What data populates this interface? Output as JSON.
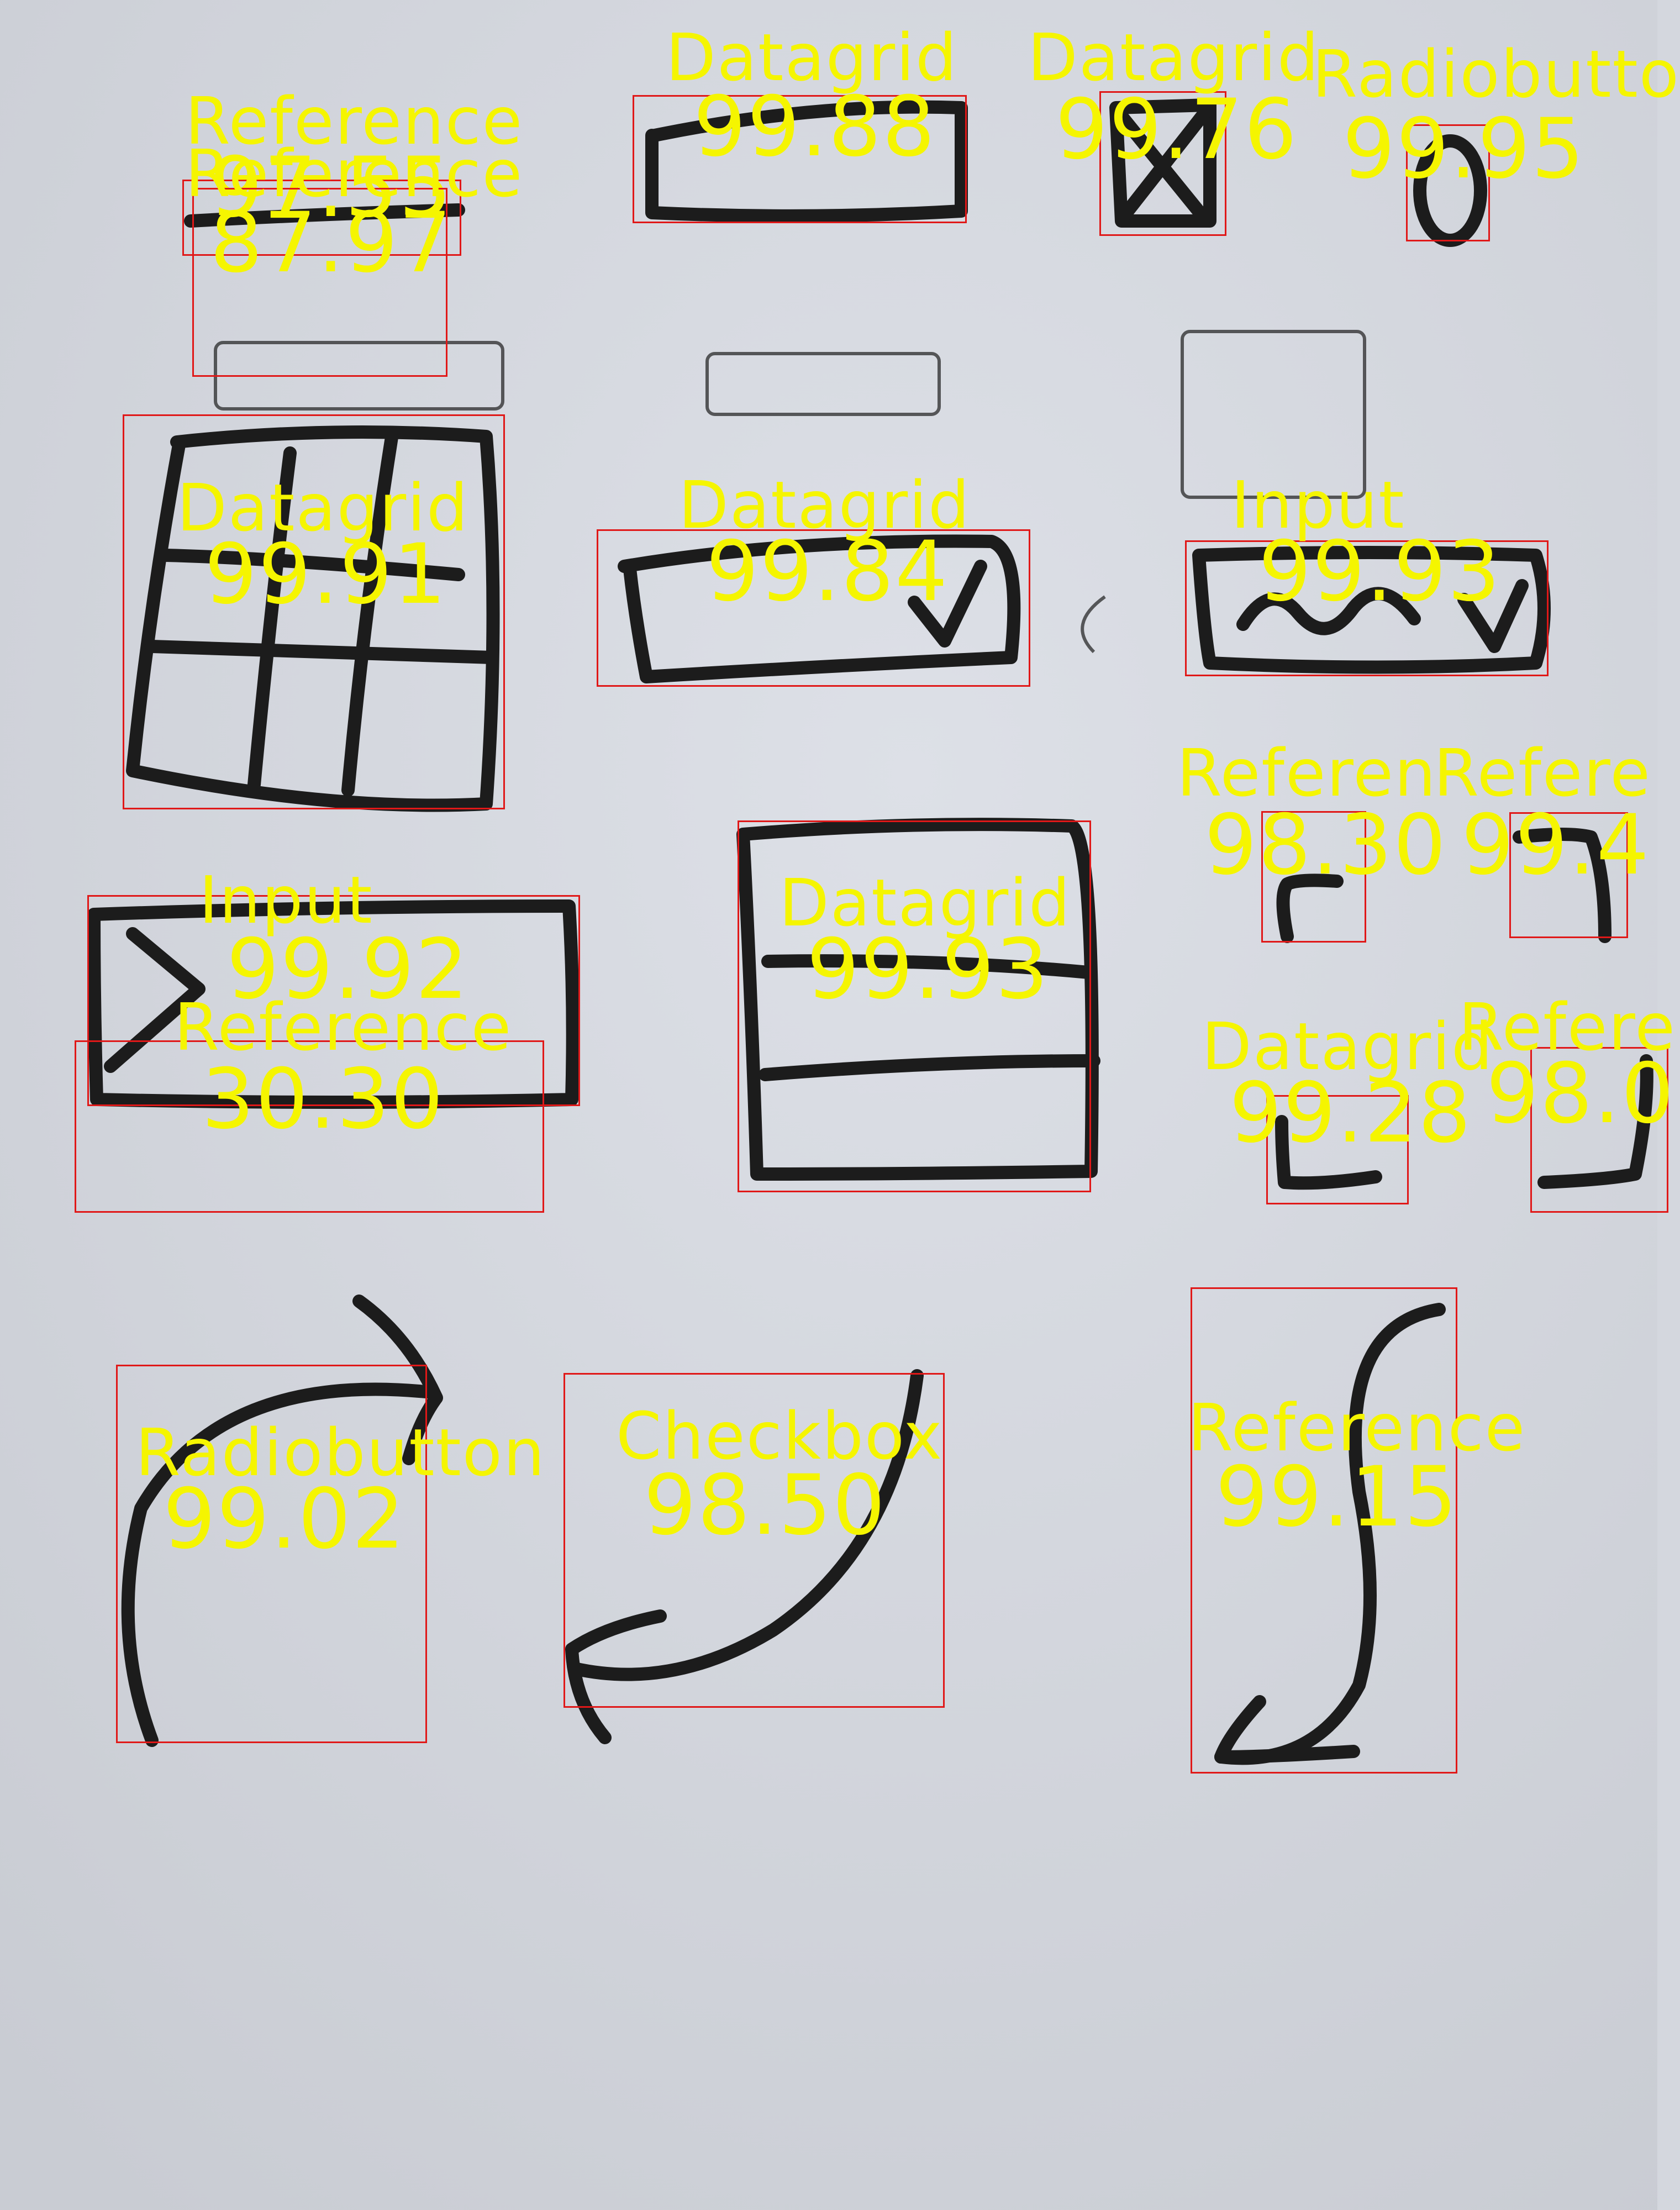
{
  "colors": {
    "paper": "#d4d7de",
    "ink": "#1c1c1c",
    "box": "#e01818",
    "text": "#f5f500"
  },
  "sketches": [
    {
      "name": "dash-line-sketch"
    },
    {
      "name": "text-field-sketch"
    },
    {
      "name": "crossed-checkbox-sketch"
    },
    {
      "name": "oval-radio-sketch"
    },
    {
      "name": "table-grid-sketch"
    },
    {
      "name": "dropdown-sketch"
    },
    {
      "name": "wavy-dropdown-sketch"
    },
    {
      "name": "input-arrow-sketch"
    },
    {
      "name": "list-panel-sketch"
    },
    {
      "name": "top-left-bracket-sketch"
    },
    {
      "name": "top-right-bracket-sketch"
    },
    {
      "name": "bottom-left-bracket-sketch"
    },
    {
      "name": "bottom-right-bracket-sketch"
    },
    {
      "name": "curved-arrow-right-sketch"
    },
    {
      "name": "curved-arrow-left-sketch"
    },
    {
      "name": "s-arrow-down-sketch"
    }
  ],
  "detections": [
    {
      "label": "Reference",
      "score": "97.55"
    },
    {
      "label": "Reference",
      "score": "87.97"
    },
    {
      "label": "Datagrid",
      "score": "99.88"
    },
    {
      "label": "Datagrid",
      "score": "99.76"
    },
    {
      "label": "Radiobutto",
      "score": "99.95"
    },
    {
      "label": "Datagrid",
      "score": "99.91"
    },
    {
      "label": "Datagrid",
      "score": "99.84"
    },
    {
      "label": "Input",
      "score": "99.93"
    },
    {
      "label": "Input",
      "score": "99.92"
    },
    {
      "label": "Reference",
      "score": "30.30"
    },
    {
      "label": "Datagrid",
      "score": "99.93"
    },
    {
      "label": "Referen",
      "score": "98.30"
    },
    {
      "label": "Refere",
      "score": "99.4"
    },
    {
      "label": "Datagrid",
      "score": "99.28"
    },
    {
      "label": "Refere",
      "score": "98.0"
    },
    {
      "label": "Radiobutton",
      "score": "99.02"
    },
    {
      "label": "Checkbox",
      "score": "98.50"
    },
    {
      "label": "Reference",
      "score": "99.15"
    }
  ]
}
